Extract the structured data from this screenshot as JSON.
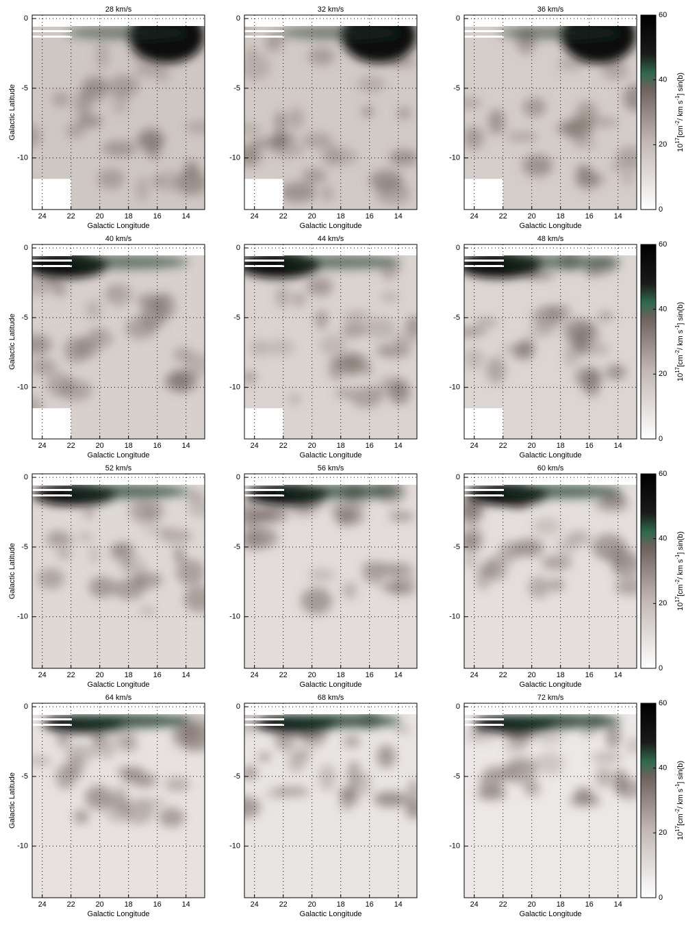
{
  "figure": {
    "panels": [
      {
        "title": "28 km/s"
      },
      {
        "title": "32 km/s"
      },
      {
        "title": "36 km/s"
      },
      {
        "title": "40 km/s"
      },
      {
        "title": "44 km/s"
      },
      {
        "title": "48 km/s"
      },
      {
        "title": "52 km/s"
      },
      {
        "title": "56 km/s"
      },
      {
        "title": "60 km/s"
      },
      {
        "title": "64 km/s"
      },
      {
        "title": "68 km/s"
      },
      {
        "title": "72 km/s"
      }
    ],
    "xlabel": "Galactic Longitude",
    "ylabel": "Galactic Latitude",
    "xlim": [
      24.7,
      12.7
    ],
    "ylim": [
      -13.7,
      0.25
    ],
    "xticks": [
      24,
      22,
      20,
      18,
      16,
      14
    ],
    "yticks": [
      0,
      -5,
      -10
    ],
    "colorbar": {
      "lim": [
        0,
        60
      ],
      "ticks": [
        0,
        20,
        40,
        60
      ],
      "label": [
        "10",
        "17",
        "[cm",
        "-2",
        "/ km s",
        "-1",
        "]  sin(b)"
      ]
    }
  }
}
